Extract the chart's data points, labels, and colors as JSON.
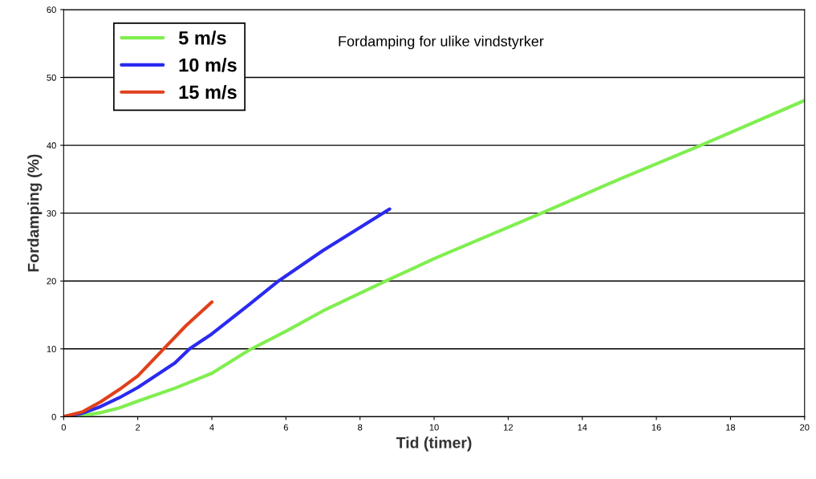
{
  "chart_data": {
    "type": "line",
    "title": "Fordamping for ulike vindstyrker",
    "xlabel": "Tid (timer)",
    "ylabel": "Fordamping (%)",
    "xlim": [
      0,
      20
    ],
    "ylim": [
      0,
      60
    ],
    "xticks": [
      0,
      2,
      4,
      6,
      8,
      10,
      12,
      14,
      16,
      18,
      20
    ],
    "yticks": [
      0,
      10,
      20,
      30,
      40,
      50,
      60
    ],
    "grid": "y",
    "legend": "top left",
    "marker": "none",
    "line_style": "solid",
    "series": [
      {
        "name": "5 m/s",
        "color": "#80ee50",
        "x": [
          0,
          0.5,
          1,
          1.5,
          2,
          3,
          4,
          5,
          6,
          7,
          8.7,
          10,
          12.9,
          15,
          17.2,
          20
        ],
        "values": [
          0,
          0.2,
          0.6,
          1.3,
          2.3,
          4.2,
          6.4,
          9.8,
          12.6,
          15.6,
          20,
          23.3,
          30,
          35,
          40,
          46.6
        ]
      },
      {
        "name": "10 m/s",
        "color": "#2a2af0",
        "x": [
          0,
          0.5,
          1,
          1.5,
          2,
          3,
          3.4,
          4,
          5,
          5.8,
          7,
          8.8
        ],
        "values": [
          0,
          0.5,
          1.5,
          2.8,
          4.3,
          7.9,
          10,
          12.2,
          16.5,
          20,
          24.5,
          30.6
        ]
      },
      {
        "name": "15 m/s",
        "color": "#e0401c",
        "x": [
          0,
          0.5,
          1,
          1.5,
          2,
          2.7,
          3.3,
          4
        ],
        "values": [
          0,
          0.7,
          2.2,
          4,
          6,
          10,
          13.4,
          16.9
        ]
      }
    ]
  }
}
